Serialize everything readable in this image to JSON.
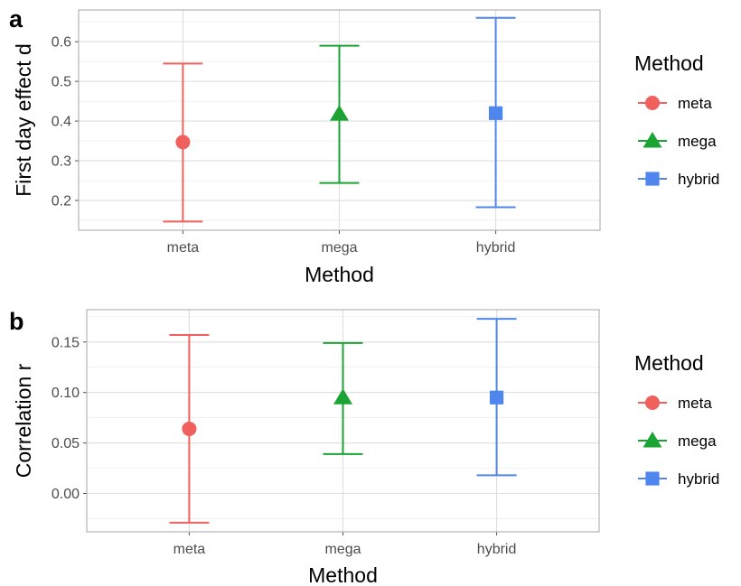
{
  "chart_data": [
    {
      "panel_tag": "a",
      "type": "scatter",
      "subtype": "point-with-errorbars",
      "categories": [
        "meta",
        "mega",
        "hybrid"
      ],
      "series": [
        {
          "name": "meta",
          "shape": "circle",
          "color": "#F0605D",
          "x": "meta",
          "y": 0.347,
          "lower": 0.147,
          "upper": 0.545
        },
        {
          "name": "mega",
          "shape": "triangle",
          "color": "#1BA334",
          "x": "mega",
          "y": 0.418,
          "lower": 0.244,
          "upper": 0.59
        },
        {
          "name": "hybrid",
          "shape": "square",
          "color": "#4F86EE",
          "x": "hybrid",
          "y": 0.42,
          "lower": 0.183,
          "upper": 0.66
        }
      ],
      "xlabel": "Method",
      "ylabel": "First day effect d",
      "ylim": [
        0.125,
        0.68
      ],
      "yticks": [
        0.2,
        0.3,
        0.4,
        0.5,
        0.6
      ],
      "ytick_labels": [
        "0.2",
        "0.3",
        "0.4",
        "0.5",
        "0.6"
      ],
      "grid": true,
      "legend": {
        "title": "Method",
        "position": "right",
        "items": [
          "meta",
          "mega",
          "hybrid"
        ]
      }
    },
    {
      "panel_tag": "b",
      "type": "scatter",
      "subtype": "point-with-errorbars",
      "categories": [
        "meta",
        "mega",
        "hybrid"
      ],
      "series": [
        {
          "name": "meta",
          "shape": "circle",
          "color": "#F0605D",
          "x": "meta",
          "y": 0.064,
          "lower": -0.029,
          "upper": 0.157
        },
        {
          "name": "mega",
          "shape": "triangle",
          "color": "#1BA334",
          "x": "mega",
          "y": 0.095,
          "lower": 0.039,
          "upper": 0.149
        },
        {
          "name": "hybrid",
          "shape": "square",
          "color": "#4F86EE",
          "x": "hybrid",
          "y": 0.095,
          "lower": 0.018,
          "upper": 0.173
        }
      ],
      "xlabel": "Method",
      "ylabel": "Correlation r",
      "ylim": [
        -0.038,
        0.182
      ],
      "yticks": [
        0.0,
        0.05,
        0.1,
        0.15
      ],
      "ytick_labels": [
        "0.00",
        "0.05",
        "0.10",
        "0.15"
      ],
      "grid": true,
      "legend": {
        "title": "Method",
        "position": "right",
        "items": [
          "meta",
          "mega",
          "hybrid"
        ]
      }
    }
  ]
}
